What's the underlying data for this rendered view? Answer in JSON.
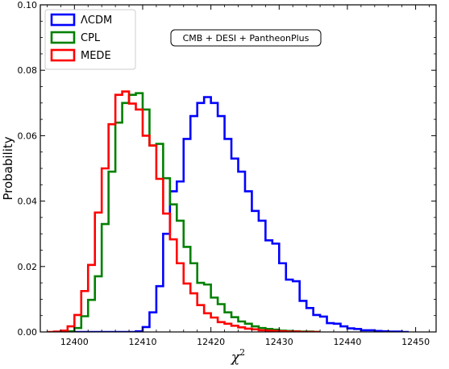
{
  "chart_data": {
    "type": "histogram",
    "xlabel": "χ",
    "xlabel_sup": "2",
    "ylabel": "Probability",
    "xlim": [
      12395,
      12453
    ],
    "ylim": [
      0,
      0.1
    ],
    "x_ticks": [
      12400,
      12410,
      12420,
      12430,
      12440,
      12450
    ],
    "y_ticks": [
      0.0,
      0.02,
      0.04,
      0.06,
      0.08,
      0.1
    ],
    "y_tick_labels": [
      "0.00",
      "0.02",
      "0.04",
      "0.06",
      "0.08",
      "0.10"
    ],
    "legend_position": "top-left",
    "annotation": "CMB + DESI + PantheonPlus",
    "series": [
      {
        "name": "ΛCDM",
        "color": "#0000ff",
        "bin_edges": [
          12398,
          12399,
          12400,
          12401,
          12402,
          12403,
          12404,
          12405,
          12406,
          12407,
          12408,
          12409,
          12410,
          12411,
          12412,
          12413,
          12414,
          12415,
          12416,
          12417,
          12418,
          12419,
          12420,
          12421,
          12422,
          12423,
          12424,
          12425,
          12426,
          12427,
          12428,
          12429,
          12430,
          12431,
          12432,
          12433,
          12434,
          12435,
          12436,
          12437,
          12438,
          12439,
          12440,
          12441,
          12442,
          12443,
          12444,
          12445,
          12446,
          12447,
          12448,
          12449
        ],
        "values": [
          0,
          0,
          0,
          0,
          0,
          0,
          0,
          0,
          0,
          0,
          0,
          0.0002,
          0.0015,
          0.006,
          0.014,
          0.03,
          0.043,
          0.046,
          0.059,
          0.066,
          0.07,
          0.0718,
          0.07,
          0.066,
          0.059,
          0.053,
          0.049,
          0.043,
          0.037,
          0.034,
          0.028,
          0.027,
          0.021,
          0.016,
          0.0155,
          0.0095,
          0.0073,
          0.0052,
          0.0047,
          0.0027,
          0.0025,
          0.0017,
          0.0011,
          0.0009,
          0.0005,
          0.0005,
          0.0003,
          0.0002,
          0.0001,
          0.0001,
          0
        ]
      },
      {
        "name": "CPL",
        "color": "#008000",
        "bin_edges": [
          12398,
          12399,
          12400,
          12401,
          12402,
          12403,
          12404,
          12405,
          12406,
          12407,
          12408,
          12409,
          12410,
          12411,
          12412,
          12413,
          12414,
          12415,
          12416,
          12417,
          12418,
          12419,
          12420,
          12421,
          12422,
          12423,
          12424,
          12425,
          12426,
          12427,
          12428,
          12429,
          12430,
          12431,
          12432,
          12433,
          12434,
          12435,
          12436
        ],
        "values": [
          0,
          0.0002,
          0.0012,
          0.0048,
          0.0098,
          0.017,
          0.033,
          0.049,
          0.064,
          0.07,
          0.0725,
          0.073,
          0.068,
          0.057,
          0.0575,
          0.047,
          0.039,
          0.034,
          0.026,
          0.021,
          0.015,
          0.0145,
          0.0105,
          0.0085,
          0.006,
          0.0045,
          0.0032,
          0.0025,
          0.0017,
          0.0012,
          0.0009,
          0.0007,
          0.0004,
          0.0003,
          0.0002,
          0.0001,
          0.0001,
          0
        ]
      },
      {
        "name": "MEDE",
        "color": "#ff0000",
        "bin_edges": [
          12396,
          12397,
          12398,
          12399,
          12400,
          12401,
          12402,
          12403,
          12404,
          12405,
          12406,
          12407,
          12408,
          12409,
          12410,
          12411,
          12412,
          12413,
          12414,
          12415,
          12416,
          12417,
          12418,
          12419,
          12420,
          12421,
          12422,
          12423,
          12424,
          12425,
          12426,
          12427,
          12428,
          12429,
          12430,
          12431,
          12432,
          12433,
          12434,
          12435,
          12436
        ],
        "values": [
          0,
          0.0001,
          0.0004,
          0.0017,
          0.0052,
          0.0125,
          0.0205,
          0.0365,
          0.05,
          0.0635,
          0.0725,
          0.0735,
          0.0698,
          0.068,
          0.06,
          0.057,
          0.0468,
          0.0362,
          0.0283,
          0.021,
          0.0148,
          0.0118,
          0.0082,
          0.0057,
          0.0044,
          0.003,
          0.0025,
          0.0019,
          0.0014,
          0.001,
          0.0008,
          0.0005,
          0.0004,
          0.0003,
          0.0002,
          0.0001,
          0.0001,
          0,
          0,
          0
        ]
      }
    ]
  }
}
